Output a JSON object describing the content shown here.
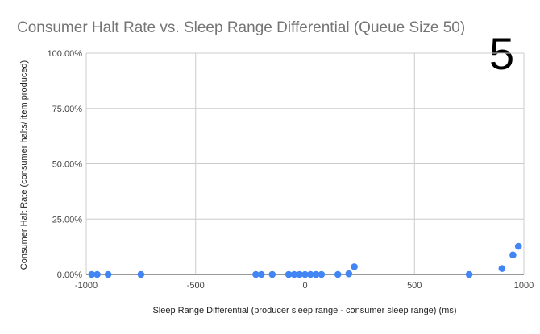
{
  "chart_data": {
    "type": "scatter",
    "title": "Consumer Halt Rate vs. Sleep Range Differential (Queue Size 50)",
    "xlabel": "Sleep Range Differential (producer sleep range - consumer sleep range) (ms)",
    "ylabel": "Consumer Halt Rate (consumer halts/ item produced)",
    "corner_label": "5",
    "xlim": [
      -1000,
      1000
    ],
    "ylim": [
      0,
      1
    ],
    "x_ticks": [
      -1000,
      -500,
      0,
      500,
      1000
    ],
    "x_tick_labels": [
      "-1000",
      "-500",
      "0",
      "500",
      "1000"
    ],
    "y_ticks": [
      0,
      0.25,
      0.5,
      0.75,
      1.0
    ],
    "y_tick_labels": [
      "0.00%",
      "25.00%",
      "50.00%",
      "75.00%",
      "100.00%"
    ],
    "grid": true,
    "point_color": "#4285f4",
    "points": [
      {
        "x": -975,
        "y": 0
      },
      {
        "x": -950,
        "y": 0
      },
      {
        "x": -900,
        "y": 0
      },
      {
        "x": -750,
        "y": 0
      },
      {
        "x": -225,
        "y": 0
      },
      {
        "x": -200,
        "y": 0
      },
      {
        "x": -150,
        "y": 0
      },
      {
        "x": -75,
        "y": 0
      },
      {
        "x": -50,
        "y": 0
      },
      {
        "x": -25,
        "y": 0
      },
      {
        "x": 0,
        "y": 0
      },
      {
        "x": 25,
        "y": 0
      },
      {
        "x": 50,
        "y": 0
      },
      {
        "x": 75,
        "y": 0
      },
      {
        "x": 150,
        "y": 0
      },
      {
        "x": 200,
        "y": 0.003
      },
      {
        "x": 225,
        "y": 0.035
      },
      {
        "x": 750,
        "y": 0
      },
      {
        "x": 900,
        "y": 0.027
      },
      {
        "x": 950,
        "y": 0.088
      },
      {
        "x": 975,
        "y": 0.127
      }
    ]
  }
}
